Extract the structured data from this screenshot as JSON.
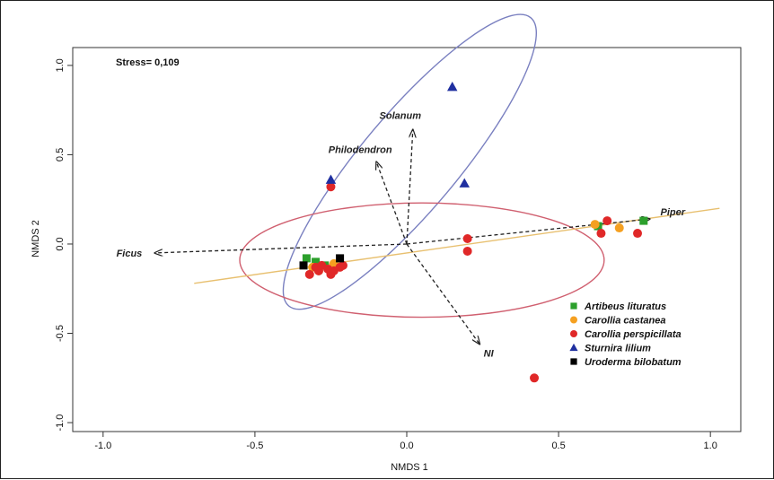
{
  "chart_data": {
    "type": "scatter",
    "title": "",
    "annotation": "Stress= 0,109",
    "xlabel": "NMDS 1",
    "ylabel": "NMDS 2",
    "xlim": [
      -1.1,
      1.1
    ],
    "ylim": [
      -1.05,
      1.1
    ],
    "x_ticks": [
      -1.0,
      -0.5,
      0.0,
      0.5,
      1.0
    ],
    "x_tick_labels": [
      "-1.0",
      "-0.5",
      "0.0",
      "0.5",
      "1.0"
    ],
    "y_ticks": [
      -1.0,
      -0.5,
      0.0,
      0.5,
      1.0
    ],
    "y_tick_labels": [
      "-1.0",
      "-0.5",
      "0.0",
      "0.5",
      "1.0"
    ],
    "grid": false,
    "legend_position": "bottom-right",
    "series": [
      {
        "name": "Artibeus lituratus",
        "marker": "square",
        "color": "#2ca02c",
        "points": [
          [
            -0.33,
            -0.08
          ],
          [
            -0.3,
            -0.1
          ],
          [
            -0.27,
            -0.12
          ],
          [
            0.63,
            0.1
          ],
          [
            0.78,
            0.13
          ]
        ]
      },
      {
        "name": "Carollia castanea",
        "marker": "circle",
        "color": "#f5a020",
        "points": [
          [
            -0.31,
            -0.13
          ],
          [
            -0.29,
            -0.15
          ],
          [
            -0.24,
            -0.11
          ],
          [
            0.62,
            0.11
          ],
          [
            0.7,
            0.09
          ]
        ]
      },
      {
        "name": "Carollia perspicillata",
        "marker": "circle",
        "color": "#e02828",
        "points": [
          [
            -0.25,
            0.32
          ],
          [
            -0.32,
            -0.17
          ],
          [
            -0.3,
            -0.13
          ],
          [
            -0.29,
            -0.15
          ],
          [
            -0.28,
            -0.12
          ],
          [
            -0.26,
            -0.14
          ],
          [
            -0.25,
            -0.17
          ],
          [
            -0.24,
            -0.15
          ],
          [
            -0.22,
            -0.13
          ],
          [
            -0.21,
            -0.12
          ],
          [
            0.2,
            0.03
          ],
          [
            0.2,
            -0.04
          ],
          [
            0.64,
            0.06
          ],
          [
            0.66,
            0.13
          ],
          [
            0.76,
            0.06
          ],
          [
            0.42,
            -0.75
          ]
        ]
      },
      {
        "name": "Sturnira lilium",
        "marker": "triangle",
        "color": "#2030a0",
        "points": [
          [
            0.15,
            0.88
          ],
          [
            0.19,
            0.34
          ],
          [
            -0.25,
            0.36
          ]
        ]
      },
      {
        "name": "Uroderma bilobatum",
        "marker": "square",
        "color": "#000000",
        "points": [
          [
            -0.22,
            -0.08
          ],
          [
            -0.34,
            -0.12
          ]
        ]
      }
    ],
    "vectors": [
      {
        "label": "Ficus",
        "x": -0.83,
        "y": -0.05
      },
      {
        "label": "Piper",
        "x": 0.8,
        "y": 0.14
      },
      {
        "label": "Solanum",
        "x": 0.02,
        "y": 0.64
      },
      {
        "label": "Philodendron",
        "x": -0.1,
        "y": 0.46
      },
      {
        "label": "NI",
        "x": 0.24,
        "y": -0.56
      }
    ],
    "ellipses": [
      {
        "color": "#7a80c0",
        "cx": 0.01,
        "cy": 0.46,
        "rx": 0.62,
        "ry": 0.27,
        "angle_deg": 50
      },
      {
        "color": "#d06070",
        "cx": 0.05,
        "cy": -0.09,
        "rx": 0.6,
        "ry": 0.32,
        "angle_deg": 0
      }
    ],
    "regression_line": {
      "color": "#e8c070",
      "x1": -0.7,
      "y1": -0.22,
      "x2": 1.03,
      "y2": 0.2
    }
  }
}
